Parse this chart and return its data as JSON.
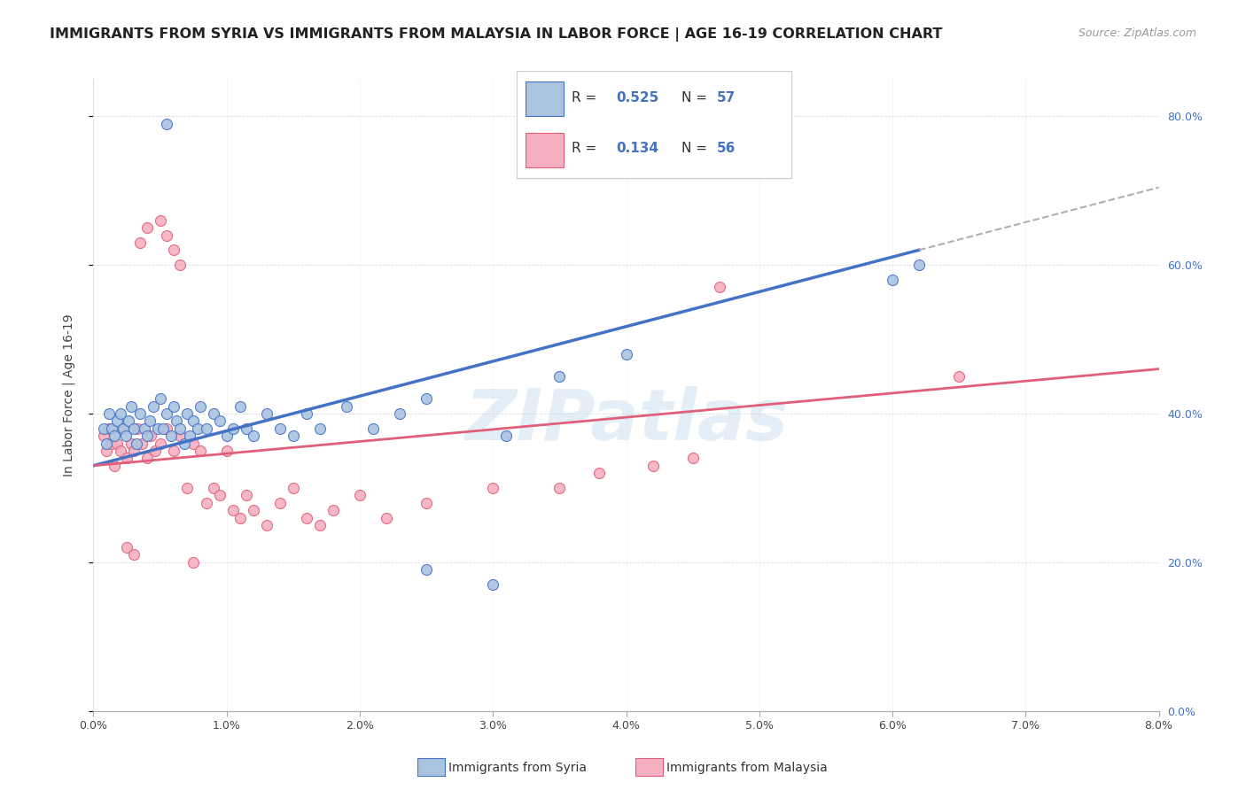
{
  "title": "IMMIGRANTS FROM SYRIA VS IMMIGRANTS FROM MALAYSIA IN LABOR FORCE | AGE 16-19 CORRELATION CHART",
  "source": "Source: ZipAtlas.com",
  "ylabel": "In Labor Force | Age 16-19",
  "xlim": [
    0.0,
    8.0
  ],
  "ylim": [
    0.0,
    85.0
  ],
  "x_ticks": [
    0.0,
    1.0,
    2.0,
    3.0,
    4.0,
    5.0,
    6.0,
    7.0,
    8.0
  ],
  "y_ticks": [
    0.0,
    20.0,
    40.0,
    60.0,
    80.0
  ],
  "legend_syria_R": "0.525",
  "legend_syria_N": "57",
  "legend_malaysia_R": "0.134",
  "legend_malaysia_N": "56",
  "color_syria_face": "#aac4e0",
  "color_syria_edge": "#4472c4",
  "color_malaysia_face": "#f5afc0",
  "color_malaysia_edge": "#e0607a",
  "color_syria_line": "#4472c4",
  "color_malaysia_line": "#e0607a",
  "color_dash": "#b0b0b0",
  "watermark": "ZIPatlas",
  "syria_x": [
    0.08,
    0.1,
    0.12,
    0.14,
    0.16,
    0.18,
    0.2,
    0.22,
    0.24,
    0.26,
    0.28,
    0.3,
    0.32,
    0.35,
    0.38,
    0.4,
    0.42,
    0.45,
    0.48,
    0.5,
    0.52,
    0.55,
    0.58,
    0.6,
    0.62,
    0.65,
    0.68,
    0.7,
    0.72,
    0.75,
    0.78,
    0.8,
    0.85,
    0.9,
    0.95,
    1.0,
    1.05,
    1.1,
    1.15,
    1.2,
    1.3,
    1.4,
    1.5,
    1.6,
    1.7,
    1.9,
    2.1,
    2.3,
    2.5,
    3.1,
    3.5,
    4.0,
    6.0,
    6.2,
    0.55,
    2.5,
    3.0
  ],
  "syria_y": [
    38,
    36,
    40,
    38,
    37,
    39,
    40,
    38,
    37,
    39,
    41,
    38,
    36,
    40,
    38,
    37,
    39,
    41,
    38,
    42,
    38,
    40,
    37,
    41,
    39,
    38,
    36,
    40,
    37,
    39,
    38,
    41,
    38,
    40,
    39,
    37,
    38,
    41,
    38,
    37,
    40,
    38,
    37,
    40,
    38,
    41,
    38,
    40,
    42,
    37,
    45,
    48,
    58,
    60,
    79,
    19,
    17
  ],
  "malaysia_x": [
    0.08,
    0.1,
    0.12,
    0.14,
    0.16,
    0.18,
    0.2,
    0.22,
    0.25,
    0.28,
    0.3,
    0.33,
    0.36,
    0.4,
    0.43,
    0.46,
    0.5,
    0.55,
    0.6,
    0.65,
    0.7,
    0.75,
    0.8,
    0.85,
    0.9,
    0.95,
    1.0,
    1.05,
    1.1,
    1.15,
    1.2,
    1.3,
    1.4,
    1.5,
    1.6,
    1.7,
    1.8,
    2.0,
    2.2,
    2.5,
    3.0,
    3.5,
    3.8,
    4.2,
    4.5,
    6.5,
    0.35,
    0.4,
    0.5,
    0.55,
    0.6,
    0.65,
    0.25,
    0.3,
    0.75,
    4.7
  ],
  "malaysia_y": [
    37,
    35,
    38,
    36,
    33,
    36,
    35,
    38,
    34,
    36,
    35,
    38,
    36,
    34,
    37,
    35,
    36,
    38,
    35,
    37,
    30,
    36,
    35,
    28,
    30,
    29,
    35,
    27,
    26,
    29,
    27,
    25,
    28,
    30,
    26,
    25,
    27,
    29,
    26,
    28,
    30,
    30,
    32,
    33,
    34,
    45,
    63,
    65,
    66,
    64,
    62,
    60,
    22,
    21,
    20,
    57
  ]
}
